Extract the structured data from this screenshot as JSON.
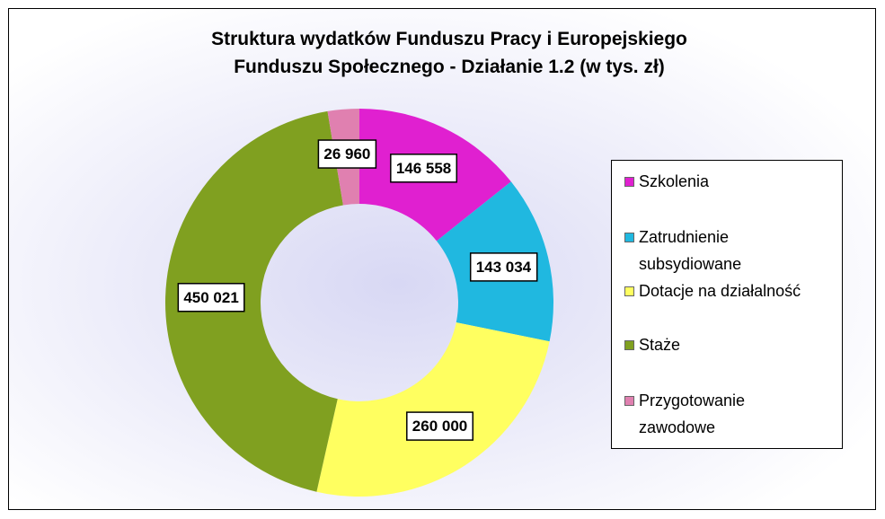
{
  "chart_data": {
    "type": "donut",
    "title": "Struktura wydatków Funduszu Pracy i Europejskiego Funduszu Społecznego - Działanie 1.2 (w tys. zł)",
    "categories": [
      "Szkolenia",
      "Zatrudnienie subsydiowane",
      "Dotacje na działalność",
      "Staże",
      "Przygotowanie zawodowe"
    ],
    "values": [
      146558,
      143034,
      260000,
      450021,
      26960
    ],
    "value_labels": [
      "146 558",
      "143 034",
      "260 000",
      "450 021",
      "26 960"
    ],
    "colors": [
      "#e020d0",
      "#20b8e0",
      "#ffff60",
      "#80a020",
      "#e080b0"
    ],
    "legend": "right"
  }
}
